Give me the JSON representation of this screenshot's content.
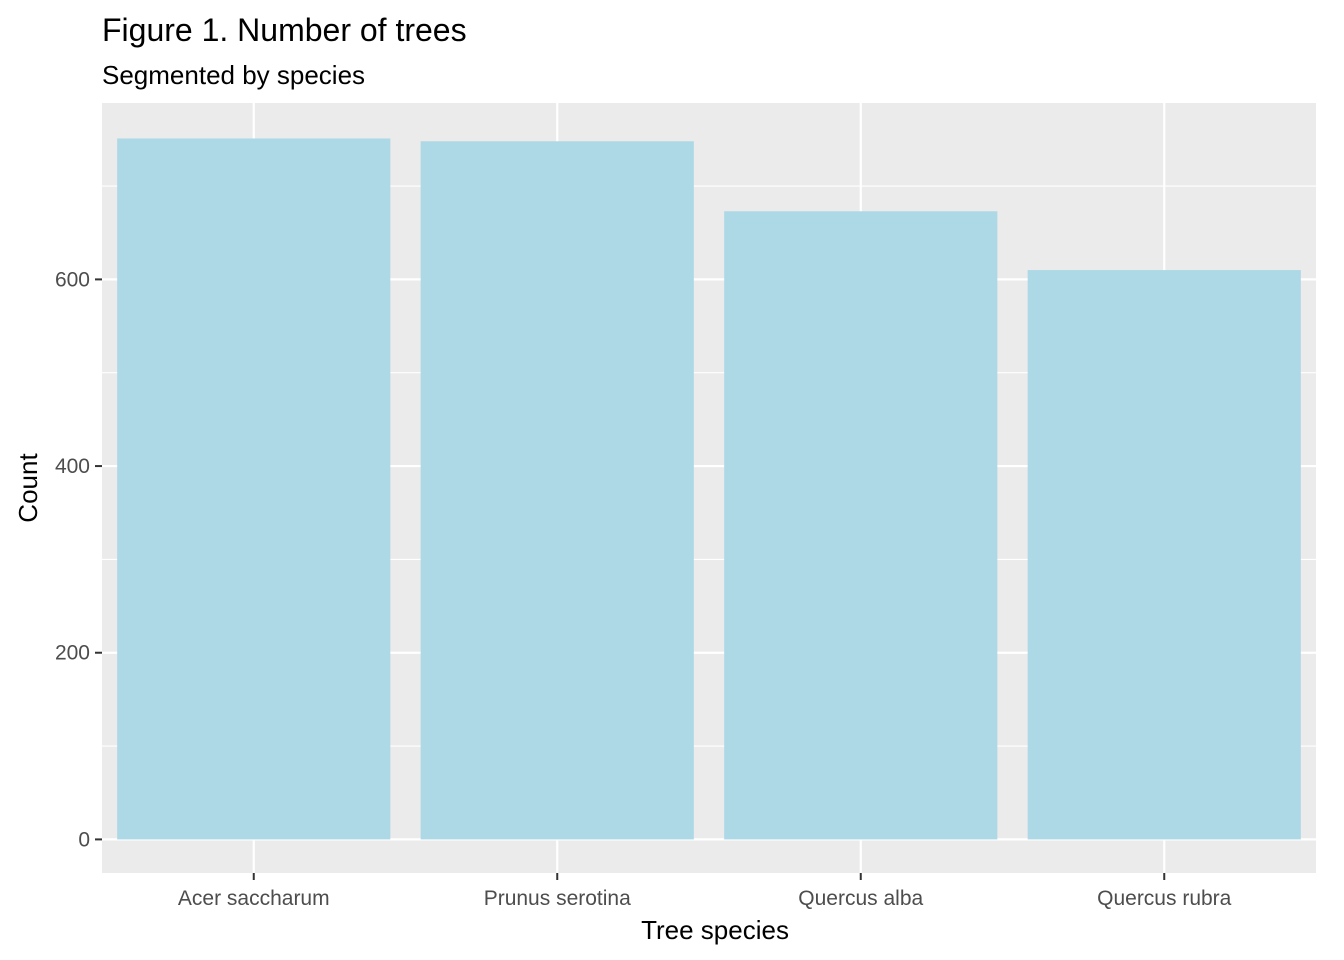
{
  "chart_data": {
    "type": "bar",
    "title": "Figure 1. Number of trees",
    "subtitle": "Segmented by species",
    "xlabel": "Tree species",
    "ylabel": "Count",
    "categories": [
      "Acer saccharum",
      "Prunus serotina",
      "Quercus alba",
      "Quercus rubra"
    ],
    "values": [
      751,
      748,
      673,
      610
    ],
    "ylim": [
      -36,
      789
    ],
    "yticks": [
      0,
      200,
      400,
      600
    ],
    "yticks_labels": [
      "0",
      "200",
      "400",
      "600"
    ],
    "grid": true,
    "colors": {
      "bar": "#add8e6",
      "panel": "#ebebeb",
      "grid": "#ffffff",
      "tick": "#333333"
    }
  }
}
